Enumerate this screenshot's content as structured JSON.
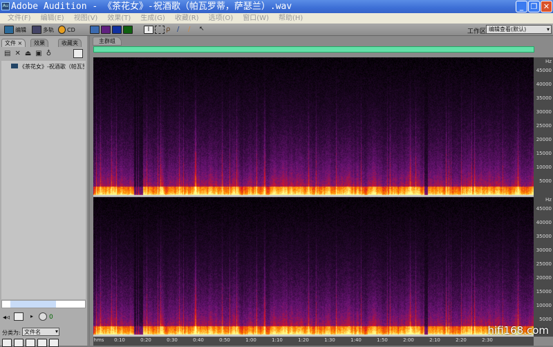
{
  "window": {
    "title": "Adobe Audition - 《茶花女》-祝酒歌（帕瓦罗蒂，萨瑟兰）.wav",
    "app_icon": "Au",
    "minimize": "_",
    "restore": "❐",
    "close": "✕"
  },
  "menu": [
    "文件(F)",
    "编辑(E)",
    "视图(V)",
    "效果(T)",
    "生成(G)",
    "收藏(R)",
    "选项(O)",
    "窗口(W)",
    "帮助(H)"
  ],
  "toolbar": {
    "edit": "编辑",
    "multitrack": "多轨",
    "cd": "CD",
    "workspace_label": "工作区:",
    "workspace_value": "编辑查看(默认)"
  },
  "left_panel": {
    "tabs": [
      "文件",
      "效果",
      "收藏夹"
    ],
    "close": "×",
    "files": [
      "《茶花女》-祝酒歌（帕瓦罗蒂"
    ],
    "volume": "0",
    "sort_label": "分类为:",
    "sort_value": "文件名"
  },
  "main": {
    "tab": "主群组"
  },
  "chart_data": {
    "type": "heatmap",
    "title": "",
    "frequency_unit": "Hz",
    "frequency_ticks": [
      45000,
      40000,
      35000,
      30000,
      25000,
      20000,
      15000,
      10000,
      5000
    ],
    "time_unit": "hms",
    "time_ticks": [
      "0:10",
      "0:20",
      "0:30",
      "0:40",
      "0:50",
      "1:00",
      "1:10",
      "1:20",
      "1:30",
      "1:40",
      "1:50",
      "2:00",
      "2:10",
      "2:20",
      "2:30"
    ],
    "channels": 2,
    "colors": [
      "#000000",
      "#3a0a4a",
      "#8a1a8a",
      "#e01020",
      "#ff8a00",
      "#ffff80"
    ]
  },
  "watermark": "hifi168.com"
}
